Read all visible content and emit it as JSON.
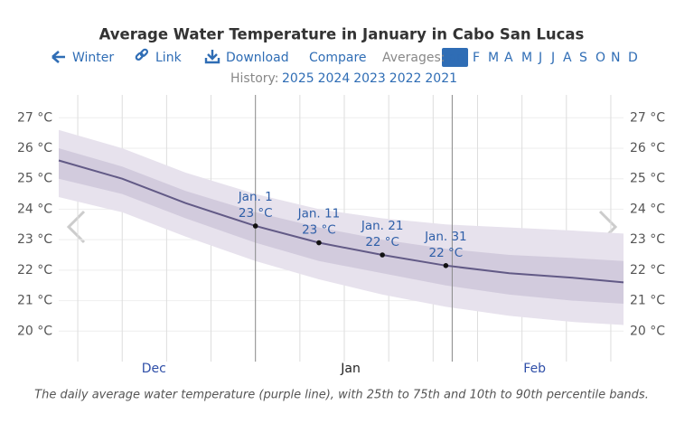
{
  "chart_data": {
    "type": "line",
    "title": "Average Water Temperature in January in Cabo San Lucas",
    "toolbar": {
      "winter": "Winter",
      "link": "Link",
      "download": "Download",
      "compare": "Compare",
      "averages": "Averages:",
      "months": [
        "Jan",
        "F",
        "M",
        "A",
        "M",
        "J",
        "J",
        "A",
        "S",
        "O",
        "N",
        "D"
      ],
      "selected": 0,
      "history": "History:",
      "years": [
        "2025",
        "2024",
        "2023",
        "2022",
        "2021"
      ]
    },
    "x": [
      -31,
      -21,
      -11,
      0,
      10,
      20,
      30,
      40,
      50,
      58
    ],
    "xlim": [
      -31,
      58
    ],
    "xticks": [
      {
        "value": -16,
        "label": "Dec"
      },
      {
        "value": 15,
        "label": "Jan"
      },
      {
        "value": 44,
        "label": "Feb"
      }
    ],
    "xgrid": [
      -28,
      -21,
      -14,
      -7,
      7,
      14,
      21,
      28,
      35,
      42,
      49,
      56
    ],
    "month_lines": [
      0,
      31
    ],
    "ylim": [
      19,
      27.75
    ],
    "yticks": [
      {
        "value": 20,
        "label": "20 °C"
      },
      {
        "value": 21,
        "label": "21 °C"
      },
      {
        "value": 22,
        "label": "22 °C"
      },
      {
        "value": 23,
        "label": "23 °C"
      },
      {
        "value": 24,
        "label": "24 °C"
      },
      {
        "value": 25,
        "label": "25 °C"
      },
      {
        "value": 26,
        "label": "26 °C"
      },
      {
        "value": 27,
        "label": "27 °C"
      }
    ],
    "series": [
      {
        "name": "10th percentile",
        "color": "#e7e2ed",
        "values": [
          24.4,
          23.9,
          23.1,
          22.3,
          21.7,
          21.2,
          20.8,
          20.5,
          20.3,
          20.2
        ]
      },
      {
        "name": "90th percentile",
        "color": "#e7e2ed",
        "values": [
          26.6,
          26.0,
          25.2,
          24.5,
          24.0,
          23.7,
          23.5,
          23.4,
          23.3,
          23.2
        ]
      },
      {
        "name": "25th percentile",
        "color": "#d2cbdd",
        "values": [
          25.0,
          24.5,
          23.7,
          22.9,
          22.3,
          21.9,
          21.5,
          21.2,
          21.0,
          20.9
        ]
      },
      {
        "name": "75th percentile",
        "color": "#d2cbdd",
        "values": [
          26.0,
          25.4,
          24.6,
          23.9,
          23.4,
          23.0,
          22.7,
          22.5,
          22.4,
          22.3
        ]
      },
      {
        "name": "average",
        "color": "#625a86",
        "values": [
          25.6,
          25.0,
          24.2,
          23.45,
          22.9,
          22.5,
          22.15,
          21.9,
          21.75,
          21.6
        ]
      }
    ],
    "annotations": [
      {
        "x": 0,
        "value": 23.45,
        "label": "Jan. 1",
        "value_label": "23 °C"
      },
      {
        "x": 10,
        "value": 22.9,
        "label": "Jan. 11",
        "value_label": "23 °C"
      },
      {
        "x": 20,
        "value": 22.5,
        "label": "Jan. 21",
        "value_label": "22 °C"
      },
      {
        "x": 30,
        "value": 22.15,
        "label": "Jan. 31",
        "value_label": "22 °C"
      }
    ],
    "caption": "The daily average water temperature (purple line), with 25th to 75th and 10th to 90th percentile bands."
  }
}
